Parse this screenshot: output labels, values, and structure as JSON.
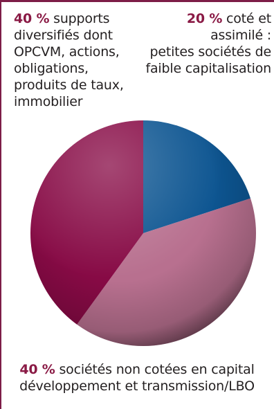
{
  "chart_data": {
    "type": "pie",
    "slices": [
      {
        "percent_label": "20 %",
        "value": 20,
        "text": " coté et assimilé :\npetites sociétés de\nfaible capitalisation",
        "color": "#0d5591"
      },
      {
        "percent_label": "40 %",
        "value": 40,
        "text": " sociétés non cotées en capital\ndéveloppement et transmission/LBO",
        "color": "#b8708f"
      },
      {
        "percent_label": "40 %",
        "value": 40,
        "text": " supports\ndiversifiés dont\nOPCVM, actions,\nobligations,\nproduits de taux,\nimmobilier",
        "color": "#870a45"
      }
    ]
  },
  "colors": {
    "accent": "#8a1a45",
    "frame": "#7d1d47"
  }
}
